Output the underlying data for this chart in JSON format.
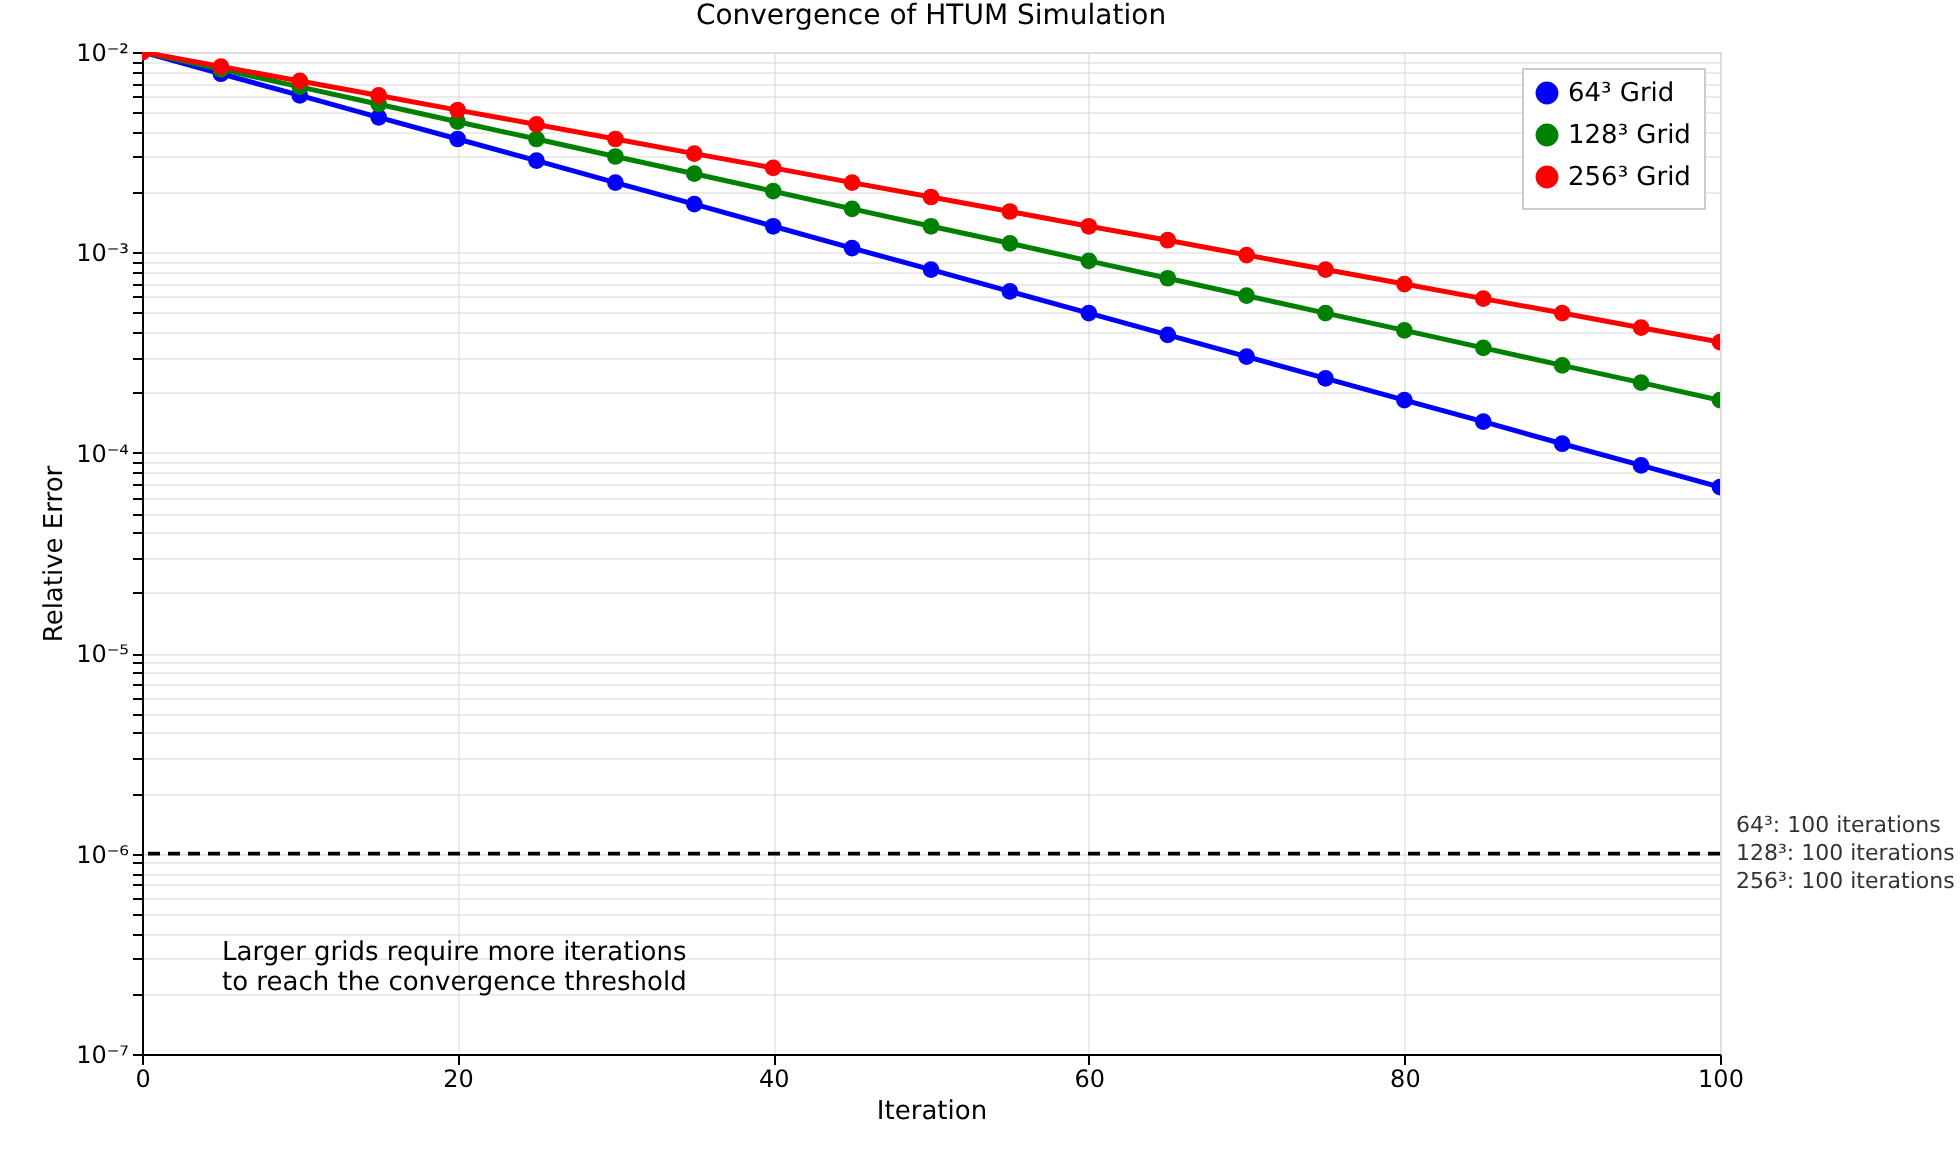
{
  "chart_data": {
    "type": "line",
    "title": "Convergence of HTUM Simulation",
    "xlabel": "Iteration",
    "ylabel": "Relative Error",
    "x": [
      0,
      5,
      10,
      15,
      20,
      25,
      30,
      35,
      40,
      45,
      50,
      55,
      60,
      65,
      70,
      75,
      80,
      85,
      90,
      95,
      100
    ],
    "series": [
      {
        "name": "64³ Grid",
        "color": "#0000ff",
        "values": [
          0.01,
          0.00779,
          0.00607,
          0.00472,
          0.00368,
          0.00287,
          0.00223,
          0.00174,
          0.00135,
          0.00105,
          0.000821,
          0.000639,
          0.000498,
          0.000388,
          0.000302,
          0.000235,
          0.000183,
          0.000143,
          0.000111,
          8.65e-05,
          6.74e-05
        ]
      },
      {
        "name": "128³ Grid",
        "color": "#008000",
        "values": [
          0.01,
          0.00819,
          0.0067,
          0.00549,
          0.00449,
          0.00368,
          0.00301,
          0.00247,
          0.00202,
          0.00165,
          0.00135,
          0.00111,
          0.000907,
          0.000743,
          0.000608,
          0.000498,
          0.000408,
          0.000334,
          0.000273,
          0.000224,
          0.000183
        ]
      },
      {
        "name": "256³ Grid",
        "color": "#ff0000",
        "values": [
          0.01,
          0.00846,
          0.00717,
          0.00607,
          0.00513,
          0.00435,
          0.00368,
          0.00311,
          0.00264,
          0.00223,
          0.00189,
          0.0016,
          0.00135,
          0.00115,
          0.00097,
          0.000821,
          0.000695,
          0.000588,
          0.000498,
          0.000421,
          0.000357
        ]
      }
    ],
    "log": "y",
    "xlim": [
      0,
      100
    ],
    "xticks": [
      0,
      20,
      40,
      60,
      80,
      100
    ],
    "ylim": [
      1e-07,
      0.01
    ],
    "yticks": [
      {
        "value": 1e-07,
        "label": "10⁻⁷"
      },
      {
        "value": 2e-07,
        "label": null
      },
      {
        "value": 3e-07,
        "label": null
      },
      {
        "value": 4e-07,
        "label": null
      },
      {
        "value": 5e-07,
        "label": null
      },
      {
        "value": 6e-07,
        "label": null
      },
      {
        "value": 7e-07,
        "label": null
      },
      {
        "value": 8e-07,
        "label": null
      },
      {
        "value": 9e-07,
        "label": null
      },
      {
        "value": 1e-06,
        "label": "10⁻⁶"
      },
      {
        "value": 2e-06,
        "label": null
      },
      {
        "value": 3e-06,
        "label": null
      },
      {
        "value": 4e-06,
        "label": null
      },
      {
        "value": 5e-06,
        "label": null
      },
      {
        "value": 6e-06,
        "label": null
      },
      {
        "value": 7e-06,
        "label": null
      },
      {
        "value": 8e-06,
        "label": null
      },
      {
        "value": 9e-06,
        "label": null
      },
      {
        "value": 1e-05,
        "label": "10⁻⁵"
      },
      {
        "value": 2e-05,
        "label": null
      },
      {
        "value": 3e-05,
        "label": null
      },
      {
        "value": 4e-05,
        "label": null
      },
      {
        "value": 5e-05,
        "label": null
      },
      {
        "value": 6e-05,
        "label": null
      },
      {
        "value": 7e-05,
        "label": null
      },
      {
        "value": 8e-05,
        "label": null
      },
      {
        "value": 9e-05,
        "label": null
      },
      {
        "value": 0.0001,
        "label": "10⁻⁴"
      },
      {
        "value": 0.0002,
        "label": null
      },
      {
        "value": 0.0003,
        "label": null
      },
      {
        "value": 0.0004,
        "label": null
      },
      {
        "value": 0.0005,
        "label": null
      },
      {
        "value": 0.0006,
        "label": null
      },
      {
        "value": 0.0007,
        "label": null
      },
      {
        "value": 0.0008,
        "label": null
      },
      {
        "value": 0.0009,
        "label": null
      },
      {
        "value": 0.001,
        "label": "10⁻³"
      },
      {
        "value": 0.002,
        "label": null
      },
      {
        "value": 0.003,
        "label": null
      },
      {
        "value": 0.004,
        "label": null
      },
      {
        "value": 0.005,
        "label": null
      },
      {
        "value": 0.006,
        "label": null
      },
      {
        "value": 0.007,
        "label": null
      },
      {
        "value": 0.008,
        "label": null
      },
      {
        "value": 0.009,
        "label": null
      },
      {
        "value": 0.01,
        "label": "10⁻²"
      }
    ],
    "grid": true,
    "legend": "top right",
    "marker": "circle",
    "line_style": "solid",
    "ref_lines": [
      {
        "axis": "y",
        "value": 1e-06,
        "color": "#000000",
        "line_style": "dashed"
      }
    ],
    "annotations": [
      "Larger grids require more iterations\nto reach the convergence threshold",
      "64³: 100 iterations",
      "128³: 100 iterations",
      "256³: 100 iterations"
    ]
  }
}
